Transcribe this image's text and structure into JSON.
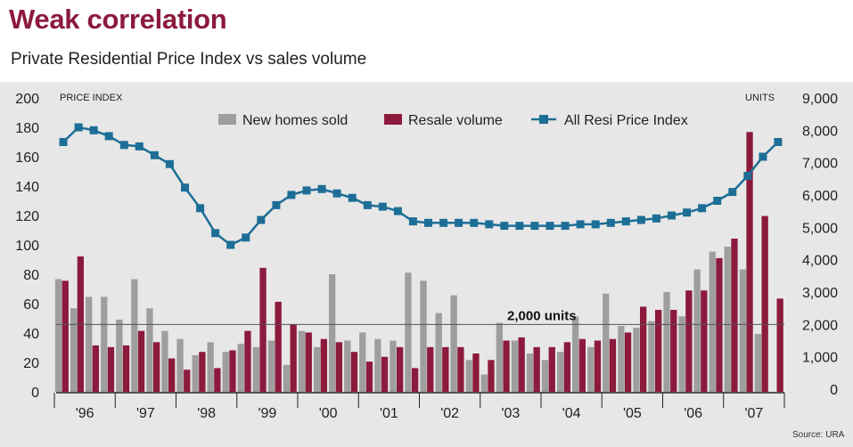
{
  "header": {
    "title": "Weak correlation",
    "subtitle": "Private Residential Price Index vs sales volume"
  },
  "source": "Source: URA",
  "colors": {
    "new_homes": "#9e9e9e",
    "resale": "#8c1a3c",
    "price_index": "#1d6e96",
    "background": "#e7e7e7",
    "title": "#8c1a3c"
  },
  "chart_data": {
    "type": "bar",
    "title": "Private Residential Price Index vs sales volume",
    "xlabel": "",
    "ylabel_left": "PRICE INDEX",
    "ylabel_right": "UNITS",
    "left_axis": {
      "range": [
        0,
        200
      ],
      "ticks": [
        0,
        20,
        40,
        60,
        80,
        100,
        120,
        140,
        160,
        180,
        200
      ]
    },
    "right_axis": {
      "range": [
        0,
        9000
      ],
      "ticks": [
        "0",
        "1,000",
        "2,000",
        "3,000",
        "4,000",
        "5,000",
        "6,000",
        "7,000",
        "8,000",
        "9,000"
      ]
    },
    "x_groups": [
      "'96",
      "'97",
      "'98",
      "'99",
      "'00",
      "'01",
      "'02",
      "'03",
      "'04",
      "'05",
      "'06",
      "'07"
    ],
    "categories": [
      "96Q1",
      "96Q2",
      "96Q3",
      "96Q4",
      "97Q1",
      "97Q2",
      "97Q3",
      "97Q4",
      "98Q1",
      "98Q2",
      "98Q3",
      "98Q4",
      "99Q1",
      "99Q2",
      "99Q3",
      "99Q4",
      "00Q1",
      "00Q2",
      "00Q3",
      "00Q4",
      "01Q1",
      "01Q2",
      "01Q3",
      "01Q4",
      "02Q1",
      "02Q2",
      "02Q3",
      "02Q4",
      "03Q1",
      "03Q2",
      "03Q3",
      "03Q4",
      "04Q1",
      "04Q2",
      "04Q3",
      "04Q4",
      "05Q1",
      "05Q2",
      "05Q3",
      "05Q4",
      "06Q1",
      "06Q2",
      "06Q3",
      "06Q4",
      "07Q1",
      "07Q2",
      "07Q3",
      "07Q4"
    ],
    "series": [
      {
        "name": "New homes sold",
        "type": "bar",
        "axis": "right",
        "values": [
          3400,
          2500,
          2850,
          2850,
          2150,
          3400,
          2500,
          1800,
          1550,
          1050,
          1450,
          1150,
          1400,
          1300,
          1500,
          750,
          1800,
          1300,
          3550,
          1500,
          1750,
          1550,
          1500,
          3600,
          3350,
          2350,
          2900,
          900,
          450,
          2050,
          1500,
          1100,
          900,
          1150,
          2250,
          1300,
          2950,
          1950,
          1900,
          2100,
          3000,
          2250,
          3700,
          4250,
          4400,
          3700,
          1700,
          0
        ]
      },
      {
        "name": "Resale volume",
        "type": "bar",
        "axis": "right",
        "values": [
          3350,
          4100,
          1350,
          1300,
          1350,
          1800,
          1450,
          950,
          600,
          1150,
          650,
          1200,
          1800,
          3750,
          2700,
          2000,
          1750,
          1550,
          1450,
          1150,
          850,
          1000,
          1300,
          650,
          1300,
          1300,
          1300,
          1100,
          900,
          1500,
          1600,
          1300,
          1300,
          1450,
          1550,
          1500,
          1550,
          1750,
          2550,
          2450,
          2450,
          3050,
          3050,
          4050,
          4650,
          7950,
          5350,
          2800
        ]
      },
      {
        "name": "All Resi Price Index",
        "type": "line",
        "axis": "left",
        "values": [
          170,
          180,
          178,
          174,
          168,
          167,
          161,
          155,
          139,
          125,
          108,
          100,
          105,
          117,
          127,
          134,
          137,
          138,
          135,
          132,
          127,
          126,
          123,
          116,
          115,
          115,
          115,
          115,
          114,
          113,
          113,
          113,
          113,
          113,
          114,
          114,
          115,
          116,
          117,
          118,
          120,
          122,
          125,
          130,
          136,
          147,
          160,
          170
        ]
      }
    ],
    "annotation": {
      "label": "2,000 units",
      "value": 2000
    },
    "legend": [
      "New homes sold",
      "Resale volume",
      "All Resi Price Index"
    ],
    "legend_position": "top"
  }
}
